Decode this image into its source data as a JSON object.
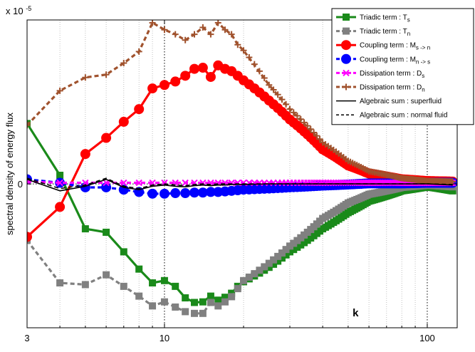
{
  "chart_data": {
    "type": "line",
    "title": "",
    "xlabel": "",
    "ylabel": "spectral density of energy flux",
    "y_exponent_label": "x 10",
    "y_exponent_power": "-5",
    "k_annotation": "k",
    "x_scale": "log",
    "xlim": [
      3,
      130
    ],
    "ylim": [
      -2.5,
      2.85
    ],
    "x_ticks": [
      3,
      10,
      100
    ],
    "x_tick_labels": [
      "3",
      "10",
      "100"
    ],
    "y_ticks": [
      0
    ],
    "y_tick_labels": [
      "0"
    ],
    "grid": "vertical dotted lines at x-axis decades; horizontal dotted line at y = 0",
    "legend_position": "top-right",
    "series": [
      {
        "name": "Triadic term : T_s",
        "label_main": "Triadic term : T",
        "label_sub": "s",
        "color": "#1a8a1a",
        "style": "solid",
        "marker": "square",
        "x": [
          3,
          4,
          5,
          6,
          7,
          8,
          9,
          10,
          11,
          12,
          13,
          14,
          15,
          16,
          17,
          18,
          19,
          20,
          25,
          30,
          40,
          50,
          60,
          80,
          100,
          125
        ],
        "y": [
          1.05,
          0.15,
          -0.78,
          -0.84,
          -1.18,
          -1.48,
          -1.72,
          -1.68,
          -1.78,
          -1.98,
          -2.06,
          -2.05,
          -1.95,
          -2.02,
          -1.97,
          -1.9,
          -1.78,
          -1.7,
          -1.45,
          -1.18,
          -0.78,
          -0.5,
          -0.3,
          -0.12,
          -0.05,
          -0.12
        ]
      },
      {
        "name": "Triadic term : T_n",
        "label_main": "Triadic term : T",
        "label_sub": "n",
        "color": "#808080",
        "style": "dashed",
        "marker": "square",
        "x": [
          3,
          4,
          5,
          6,
          7,
          8,
          9,
          10,
          11,
          12,
          13,
          14,
          15,
          16,
          17,
          18,
          19,
          20,
          25,
          30,
          40,
          50,
          60,
          80,
          100,
          125
        ],
        "y": [
          -0.98,
          -1.72,
          -1.75,
          -1.58,
          -1.78,
          -1.95,
          -2.12,
          -2.05,
          -2.14,
          -2.22,
          -2.25,
          -2.25,
          -2.06,
          -2.12,
          -2.05,
          -1.96,
          -1.82,
          -1.68,
          -1.38,
          -1.08,
          -0.6,
          -0.33,
          -0.18,
          -0.06,
          -0.02,
          -0.05
        ]
      },
      {
        "name": "Coupling term : M_{s -> n}",
        "label_main": "Coupling term : M",
        "label_sub": "s -> n",
        "color": "#ff0000",
        "style": "solid",
        "marker": "circle",
        "x": [
          3,
          4,
          5,
          6,
          7,
          8,
          9,
          10,
          11,
          12,
          13,
          14,
          15,
          16,
          17,
          18,
          19,
          20,
          25,
          30,
          40,
          50,
          60,
          80,
          100,
          125
        ],
        "y": [
          -0.92,
          -0.4,
          0.52,
          0.8,
          1.08,
          1.3,
          1.66,
          1.72,
          1.78,
          1.88,
          2.0,
          2.02,
          1.86,
          2.06,
          2.0,
          1.96,
          1.88,
          1.8,
          1.45,
          1.12,
          0.6,
          0.32,
          0.18,
          0.08,
          0.05,
          0.04
        ]
      },
      {
        "name": "Coupling term : M_{n -> s}",
        "label_main": "Coupling term : M",
        "label_sub": "n -> s",
        "color": "#0000ff",
        "style": "dashed",
        "marker": "circle",
        "x": [
          3,
          4,
          5,
          6,
          7,
          8,
          9,
          10,
          11,
          12,
          13,
          14,
          15,
          16,
          17,
          18,
          19,
          20,
          25,
          30,
          40,
          50,
          60,
          80,
          100,
          125
        ],
        "y": [
          0.08,
          0.02,
          -0.06,
          -0.06,
          -0.1,
          -0.14,
          -0.17,
          -0.17,
          -0.16,
          -0.16,
          -0.15,
          -0.15,
          -0.14,
          -0.14,
          -0.13,
          -0.12,
          -0.11,
          -0.1,
          -0.08,
          -0.06,
          -0.03,
          -0.01,
          0.01,
          0.01,
          0.02,
          0.02
        ]
      },
      {
        "name": "Dissipation term : D_s",
        "label_main": "Dissipation term : D",
        "label_sub": "s",
        "color": "#ff00ff",
        "style": "dashed",
        "marker": "x",
        "x": [
          3,
          4,
          5,
          6,
          7,
          8,
          9,
          10,
          11,
          12,
          13,
          14,
          15,
          16,
          17,
          18,
          19,
          20,
          25,
          30,
          40,
          50,
          60,
          80,
          100,
          125
        ],
        "y": [
          0.04,
          0.02,
          0.02,
          0.02,
          0.02,
          0.02,
          0.02,
          0.02,
          0.02,
          0.02,
          0.02,
          0.02,
          0.02,
          0.02,
          0.02,
          0.02,
          0.02,
          0.02,
          0.02,
          0.02,
          0.02,
          0.02,
          0.02,
          0.02,
          0.02,
          0.02
        ]
      },
      {
        "name": "Dissipation term : D_n",
        "label_main": "Dissipation term : D",
        "label_sub": "n",
        "color": "#a0522d",
        "style": "dashed",
        "marker": "plus",
        "x": [
          3,
          4,
          5,
          6,
          7,
          8,
          9,
          10,
          11,
          12,
          13,
          14,
          15,
          16,
          17,
          18,
          19,
          20,
          25,
          30,
          40,
          50,
          60,
          80,
          100,
          125
        ],
        "y": [
          1.02,
          1.62,
          1.85,
          1.9,
          2.1,
          2.3,
          2.8,
          2.68,
          2.6,
          2.5,
          2.6,
          2.72,
          2.6,
          2.8,
          2.68,
          2.6,
          2.42,
          2.32,
          1.72,
          1.3,
          0.72,
          0.4,
          0.22,
          0.1,
          0.05,
          0.04
        ]
      },
      {
        "name": "Algebraic sum : superfluid",
        "color": "#000000",
        "style": "solid",
        "marker": "none",
        "x": [
          3,
          4,
          5,
          6,
          7,
          8,
          9,
          10,
          11,
          12,
          13,
          14,
          15,
          16,
          17,
          18,
          19,
          20,
          25,
          30,
          40,
          50,
          60,
          80,
          100,
          125
        ],
        "y": [
          0.08,
          -0.12,
          -0.04,
          0.08,
          -0.06,
          -0.1,
          -0.04,
          -0.02,
          -0.04,
          -0.05,
          -0.03,
          -0.02,
          -0.03,
          -0.02,
          -0.02,
          -0.01,
          -0.01,
          -0.01,
          0.0,
          0.0,
          0.0,
          0.0,
          0.0,
          0.0,
          0.0,
          -0.02
        ]
      },
      {
        "name": "Algebraic sum : normal fluid",
        "color": "#000000",
        "style": "dashed",
        "marker": "none",
        "x": [
          3,
          4,
          5,
          6,
          7,
          8,
          9,
          10,
          11,
          12,
          13,
          14,
          15,
          16,
          17,
          18,
          19,
          20,
          25,
          30,
          40,
          50,
          60,
          80,
          100,
          125
        ],
        "y": [
          0.1,
          -0.08,
          -0.02,
          0.1,
          -0.04,
          -0.08,
          -0.02,
          0.0,
          -0.02,
          -0.03,
          -0.01,
          0.0,
          -0.01,
          0.0,
          0.0,
          0.0,
          0.0,
          0.0,
          0.0,
          0.0,
          0.0,
          0.0,
          0.0,
          0.0,
          0.0,
          -0.01
        ]
      }
    ]
  }
}
